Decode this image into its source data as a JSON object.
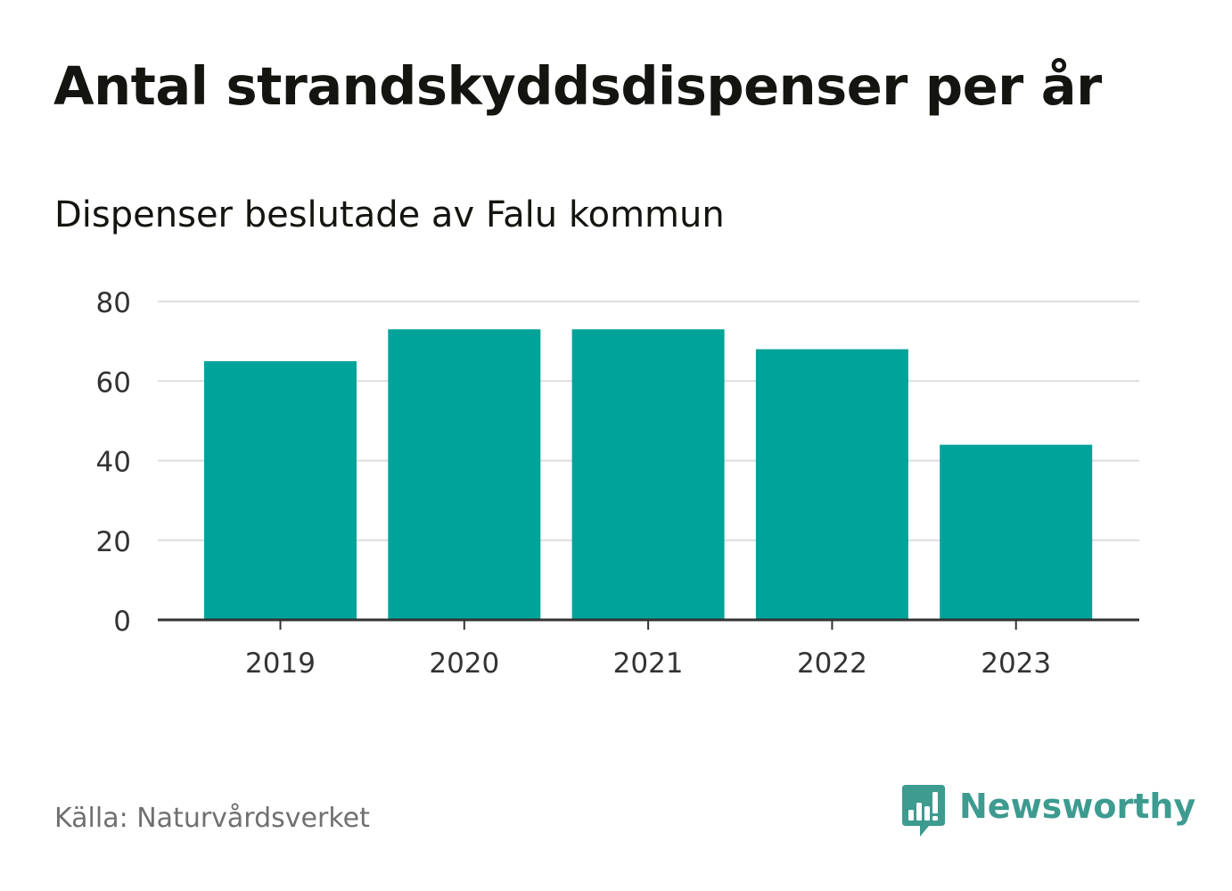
{
  "header": {
    "title": "Antal strandskyddsdispenser per år",
    "subtitle": "Dispenser beslutade av Falu kommun"
  },
  "footer": {
    "source": "Källa: Naturvårdsverket",
    "brand": "Newsworthy",
    "brand_icon": "bar-chart-bubble-icon"
  },
  "colors": {
    "bar": "#00a39a",
    "grid": "#dddddd",
    "axis": "#333333",
    "brand": "#3d9b90"
  },
  "chart_data": {
    "type": "bar",
    "title": "Antal strandskyddsdispenser per år",
    "subtitle": "Dispenser beslutade av Falu kommun",
    "categories": [
      "2019",
      "2020",
      "2021",
      "2022",
      "2023"
    ],
    "values": [
      65,
      73,
      73,
      68,
      44
    ],
    "xlabel": "",
    "ylabel": "",
    "ylim": [
      0,
      80
    ],
    "yticks": [
      0,
      20,
      40,
      60,
      80
    ],
    "grid": true,
    "legend": "none"
  }
}
